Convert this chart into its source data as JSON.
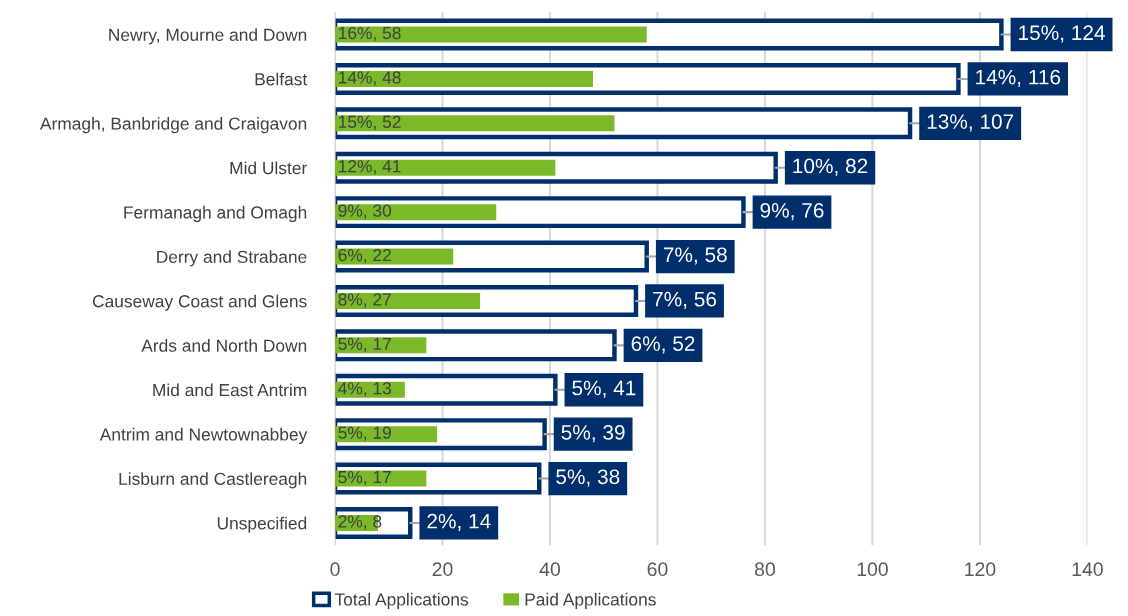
{
  "chart_data": {
    "type": "bar",
    "orientation": "horizontal",
    "categories": [
      "Newry, Mourne and Down",
      "Belfast",
      "Armagh, Banbridge and Craigavon",
      "Mid Ulster",
      "Fermanagh and Omagh",
      "Derry and Strabane",
      "Causeway Coast and Glens",
      "Ards and North Down",
      "Mid and East Antrim",
      "Antrim and Newtownabbey",
      "Lisburn and Castlereagh",
      "Unspecified"
    ],
    "series": [
      {
        "name": "Total Applications",
        "color": "#002f6c",
        "values": [
          124,
          116,
          107,
          82,
          76,
          58,
          56,
          52,
          41,
          39,
          38,
          14
        ],
        "value_labels": [
          "15%, 124",
          "14%, 116",
          "13%, 107",
          "10%, 82",
          "9%, 76",
          "7%, 58",
          "7%, 56",
          "6%, 52",
          "5%, 41",
          "5%, 39",
          "5%, 38",
          "2%, 14"
        ]
      },
      {
        "name": "Paid Applications",
        "color": "#7ab929",
        "values": [
          58,
          48,
          52,
          41,
          30,
          22,
          27,
          17,
          13,
          19,
          17,
          8
        ],
        "value_labels": [
          "16%, 58",
          "14%, 48",
          "15%, 52",
          "12%, 41",
          "9%, 30",
          "6%, 22",
          "8%, 27",
          "5%, 17",
          "4%, 13",
          "5%, 19",
          "5%, 17",
          "2%, 8"
        ]
      }
    ],
    "xlim": [
      0,
      140
    ],
    "xticks": [
      0,
      20,
      40,
      60,
      80,
      100,
      120,
      140
    ],
    "grid": "x",
    "legend": "bottom"
  }
}
